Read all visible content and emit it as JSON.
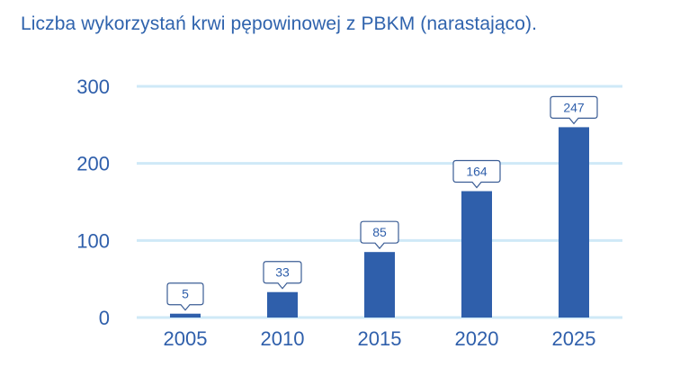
{
  "title": "Liczba wykorzystań krwi pępowinowej z PBKM (narastająco).",
  "colors": {
    "bar": "#2f5fab",
    "gridline": "#cfe9f7",
    "axis_text": "#2f5fab",
    "title": "#2f63ad",
    "label_border": "#3b5d95",
    "label_text": "#2f5fab"
  },
  "chart_data": {
    "type": "bar",
    "title": "Liczba wykorzystań krwi pępowinowej z PBKM (narastająco).",
    "xlabel": "",
    "ylabel": "",
    "categories": [
      "2005",
      "2010",
      "2015",
      "2020",
      "2025"
    ],
    "values": [
      5,
      33,
      85,
      164,
      247
    ],
    "ylim": [
      0,
      300
    ],
    "yticks": [
      0,
      100,
      200,
      300
    ],
    "ytick_labels": [
      "0",
      "100",
      "200",
      "300"
    ],
    "grid": true,
    "legend": "none",
    "data_labels": [
      "5",
      "33",
      "85",
      "164",
      "247"
    ]
  }
}
